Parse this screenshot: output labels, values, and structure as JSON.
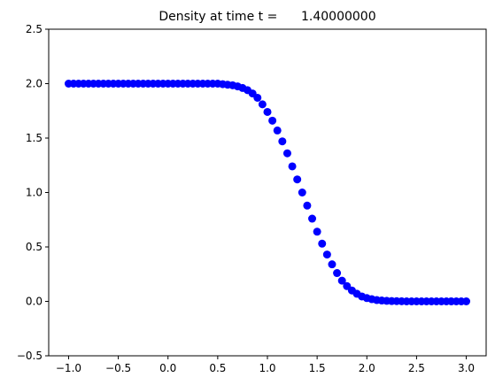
{
  "chart_data": {
    "type": "scatter",
    "title": "Density at time t =      1.40000000",
    "xlabel": "",
    "ylabel": "",
    "xlim": [
      -1.2,
      3.2
    ],
    "ylim": [
      -0.5,
      2.5
    ],
    "xticks": [
      -1.0,
      -0.5,
      0.0,
      0.5,
      1.0,
      1.5,
      2.0,
      2.5,
      3.0
    ],
    "xtick_labels": [
      "−1.0",
      "−0.5",
      "0.0",
      "0.5",
      "1.0",
      "1.5",
      "2.0",
      "2.5",
      "3.0"
    ],
    "yticks": [
      -0.5,
      0.0,
      0.5,
      1.0,
      1.5,
      2.0,
      2.5
    ],
    "ytick_labels": [
      "−0.5",
      "0.0",
      "0.5",
      "1.0",
      "1.5",
      "2.0",
      "2.5"
    ],
    "grid": false,
    "marker_color": "#0000ff",
    "x": [
      -1.0,
      -0.95,
      -0.9,
      -0.85,
      -0.8,
      -0.75,
      -0.7,
      -0.65,
      -0.6,
      -0.55,
      -0.5,
      -0.45,
      -0.4,
      -0.35,
      -0.3,
      -0.25,
      -0.2,
      -0.15,
      -0.1,
      -0.05,
      0.0,
      0.05,
      0.1,
      0.15,
      0.2,
      0.25,
      0.3,
      0.35,
      0.4,
      0.45,
      0.5,
      0.55,
      0.6,
      0.65,
      0.7,
      0.75,
      0.8,
      0.85,
      0.9,
      0.95,
      1.0,
      1.05,
      1.1,
      1.15,
      1.2,
      1.25,
      1.3,
      1.35,
      1.4,
      1.45,
      1.5,
      1.55,
      1.6,
      1.65,
      1.7,
      1.75,
      1.8,
      1.85,
      1.9,
      1.95,
      2.0,
      2.05,
      2.1,
      2.15,
      2.2,
      2.25,
      2.3,
      2.35,
      2.4,
      2.45,
      2.5,
      2.55,
      2.6,
      2.65,
      2.7,
      2.75,
      2.8,
      2.85,
      2.9,
      2.95,
      3.0
    ],
    "y": [
      2.0,
      2.0,
      2.0,
      2.0,
      2.0,
      2.0,
      2.0,
      2.0,
      2.0,
      2.0,
      2.0,
      2.0,
      2.0,
      2.0,
      2.0,
      2.0,
      2.0,
      2.0,
      2.0,
      2.0,
      2.0,
      2.0,
      2.0,
      2.0,
      2.0,
      2.0,
      2.0,
      2.0,
      2.0,
      2.0,
      2.0,
      1.995,
      1.99,
      1.985,
      1.975,
      1.96,
      1.94,
      1.91,
      1.87,
      1.81,
      1.74,
      1.66,
      1.57,
      1.47,
      1.36,
      1.24,
      1.12,
      1.0,
      0.88,
      0.76,
      0.64,
      0.53,
      0.43,
      0.34,
      0.26,
      0.19,
      0.14,
      0.1,
      0.07,
      0.045,
      0.03,
      0.02,
      0.012,
      0.008,
      0.005,
      0.003,
      0.002,
      0.001,
      0.0,
      0.0,
      0.0,
      0.0,
      0.0,
      0.0,
      0.0,
      0.0,
      0.0,
      0.0,
      0.0,
      0.0,
      0.0
    ]
  }
}
